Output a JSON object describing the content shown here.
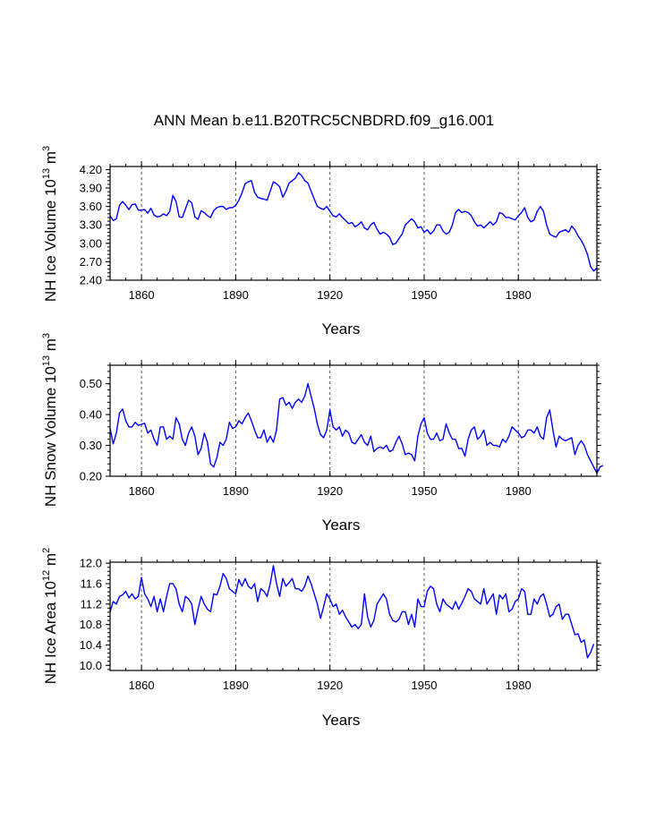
{
  "figure": {
    "title": "ANN Mean b.e11.B20TRC5CNBDRD.f09_g16.001"
  },
  "colors": {
    "line": "#0000ff",
    "axes": "#000000",
    "grid": "#555555"
  },
  "chart_data": [
    {
      "type": "line",
      "ylabel": {
        "main": "NH Ice Volume 10",
        "sup1": "13",
        "unit": " m",
        "sup2": "3"
      },
      "xlabel": "Years",
      "xlim": [
        1850,
        2005
      ],
      "ylim": [
        2.4,
        4.25
      ],
      "yticks": [
        "2.40",
        "2.70",
        "3.00",
        "3.30",
        "3.60",
        "3.90",
        "4.20"
      ],
      "xticks": [
        "1860",
        "1890",
        "1920",
        "1950",
        "1980"
      ],
      "grid_x": [
        1860,
        1890,
        1920,
        1950,
        1980
      ],
      "series": [
        {
          "name": "NH Ice Volume",
          "x_start": 1850,
          "values": [
            3.45,
            3.37,
            3.4,
            3.62,
            3.68,
            3.62,
            3.55,
            3.63,
            3.64,
            3.54,
            3.54,
            3.55,
            3.49,
            3.57,
            3.46,
            3.43,
            3.44,
            3.48,
            3.45,
            3.52,
            3.78,
            3.68,
            3.43,
            3.42,
            3.56,
            3.7,
            3.66,
            3.43,
            3.39,
            3.53,
            3.5,
            3.45,
            3.42,
            3.53,
            3.58,
            3.6,
            3.6,
            3.55,
            3.58,
            3.58,
            3.62,
            3.7,
            3.82,
            3.97,
            4.0,
            4.02,
            3.83,
            3.75,
            3.73,
            3.72,
            3.7,
            3.85,
            4.0,
            3.97,
            3.92,
            3.75,
            3.85,
            3.98,
            4.02,
            4.06,
            4.15,
            4.1,
            4.02,
            3.98,
            3.85,
            3.72,
            3.6,
            3.57,
            3.55,
            3.6,
            3.52,
            3.45,
            3.43,
            3.48,
            3.42,
            3.37,
            3.32,
            3.34,
            3.27,
            3.3,
            3.35,
            3.25,
            3.22,
            3.3,
            3.34,
            3.23,
            3.15,
            3.18,
            3.15,
            3.1,
            2.98,
            3.0,
            3.08,
            3.15,
            3.3,
            3.35,
            3.4,
            3.35,
            3.25,
            3.27,
            3.18,
            3.22,
            3.15,
            3.2,
            3.3,
            3.3,
            3.2,
            3.15,
            3.18,
            3.3,
            3.5,
            3.55,
            3.5,
            3.52,
            3.5,
            3.45,
            3.35,
            3.28,
            3.3,
            3.25,
            3.3,
            3.35,
            3.3,
            3.35,
            3.5,
            3.48,
            3.42,
            3.42,
            3.4,
            3.38,
            3.45,
            3.5,
            3.58,
            3.42,
            3.35,
            3.38,
            3.52,
            3.6,
            3.52,
            3.3,
            3.15,
            3.12,
            3.1,
            3.18,
            3.2,
            3.22,
            3.18,
            3.28,
            3.22,
            3.12,
            3.05,
            2.95,
            2.82,
            2.62,
            2.55,
            2.6
          ]
        }
      ]
    },
    {
      "type": "line",
      "ylabel": {
        "main": "NH Snow Volume 10",
        "sup1": "13",
        "unit": " m",
        "sup2": "3"
      },
      "xlabel": "Years",
      "xlim": [
        1850,
        2005
      ],
      "ylim": [
        0.2,
        0.56
      ],
      "yticks": [
        "0.20",
        "0.30",
        "0.40",
        "0.50"
      ],
      "xticks": [
        "1860",
        "1890",
        "1920",
        "1950",
        "1980"
      ],
      "grid_x": [
        1860,
        1890,
        1920,
        1950,
        1980
      ],
      "series": [
        {
          "name": "NH Snow Volume",
          "x_start": 1850,
          "values": [
            0.355,
            0.305,
            0.34,
            0.405,
            0.418,
            0.38,
            0.36,
            0.36,
            0.375,
            0.365,
            0.368,
            0.372,
            0.34,
            0.35,
            0.32,
            0.3,
            0.36,
            0.36,
            0.32,
            0.33,
            0.32,
            0.39,
            0.37,
            0.32,
            0.3,
            0.34,
            0.36,
            0.33,
            0.27,
            0.29,
            0.34,
            0.31,
            0.24,
            0.23,
            0.26,
            0.31,
            0.3,
            0.32,
            0.375,
            0.355,
            0.36,
            0.38,
            0.37,
            0.39,
            0.405,
            0.38,
            0.35,
            0.325,
            0.325,
            0.35,
            0.31,
            0.33,
            0.31,
            0.35,
            0.45,
            0.455,
            0.43,
            0.44,
            0.42,
            0.44,
            0.45,
            0.44,
            0.46,
            0.5,
            0.46,
            0.42,
            0.37,
            0.335,
            0.325,
            0.35,
            0.415,
            0.36,
            0.35,
            0.36,
            0.33,
            0.35,
            0.34,
            0.31,
            0.305,
            0.32,
            0.335,
            0.31,
            0.3,
            0.33,
            0.28,
            0.29,
            0.295,
            0.29,
            0.3,
            0.28,
            0.285,
            0.31,
            0.33,
            0.305,
            0.27,
            0.275,
            0.27,
            0.25,
            0.33,
            0.37,
            0.39,
            0.34,
            0.32,
            0.32,
            0.34,
            0.315,
            0.32,
            0.37,
            0.34,
            0.32,
            0.32,
            0.29,
            0.29,
            0.265,
            0.32,
            0.35,
            0.36,
            0.32,
            0.33,
            0.35,
            0.3,
            0.31,
            0.3,
            0.3,
            0.295,
            0.32,
            0.31,
            0.33,
            0.36,
            0.35,
            0.34,
            0.325,
            0.33,
            0.35,
            0.35,
            0.34,
            0.36,
            0.33,
            0.32,
            0.39,
            0.415,
            0.35,
            0.295,
            0.33,
            0.32,
            0.315,
            0.32,
            0.325,
            0.27,
            0.3,
            0.315,
            0.3,
            0.27,
            0.25,
            0.23,
            0.21,
            0.23,
            0.235
          ]
        }
      ]
    },
    {
      "type": "line",
      "ylabel": {
        "main": "NH Ice Area 10",
        "sup1": "12",
        "unit": " m",
        "sup2": "2"
      },
      "xlabel": "Years",
      "xlim": [
        1850,
        2005
      ],
      "ylim": [
        9.9,
        12.02
      ],
      "yticks": [
        "10.0",
        "10.4",
        "10.8",
        "11.2",
        "11.6",
        "12.0"
      ],
      "xticks": [
        "1860",
        "1890",
        "1920",
        "1950",
        "1980"
      ],
      "grid_x": [
        1860,
        1890,
        1920,
        1950,
        1980
      ],
      "series": [
        {
          "name": "NH Ice Area",
          "x_start": 1850,
          "values": [
            11.05,
            11.25,
            11.2,
            11.35,
            11.38,
            11.45,
            11.32,
            11.4,
            11.3,
            11.35,
            11.72,
            11.4,
            11.3,
            11.15,
            11.35,
            11.05,
            11.3,
            11.05,
            11.35,
            11.6,
            11.6,
            11.5,
            11.2,
            11.05,
            11.35,
            11.3,
            11.2,
            10.8,
            11.1,
            11.35,
            11.2,
            11.1,
            11.05,
            11.4,
            11.38,
            11.55,
            11.8,
            11.7,
            11.5,
            11.45,
            11.4,
            11.68,
            11.55,
            11.7,
            11.55,
            11.5,
            11.6,
            11.25,
            11.5,
            11.45,
            11.35,
            11.6,
            11.95,
            11.6,
            11.35,
            11.7,
            11.55,
            11.62,
            11.7,
            11.5,
            11.5,
            11.45,
            11.55,
            11.75,
            11.6,
            11.4,
            11.2,
            10.92,
            11.15,
            11.4,
            11.3,
            11.15,
            11.2,
            11.0,
            11.08,
            10.95,
            10.85,
            10.75,
            10.8,
            10.72,
            10.8,
            11.4,
            10.95,
            10.75,
            10.88,
            11.2,
            11.3,
            11.4,
            11.3,
            11.0,
            10.88,
            10.85,
            10.9,
            11.05,
            11.05,
            10.8,
            11.0,
            10.75,
            11.3,
            11.15,
            11.15,
            11.45,
            11.55,
            11.5,
            11.2,
            11.05,
            11.3,
            11.2,
            11.15,
            11.1,
            11.25,
            11.1,
            11.22,
            11.35,
            11.5,
            11.45,
            11.3,
            11.25,
            11.2,
            11.5,
            11.2,
            11.3,
            11.4,
            11.0,
            11.38,
            11.3,
            11.4,
            11.05,
            11.1,
            11.25,
            11.3,
            11.5,
            11.45,
            11.0,
            11.0,
            11.3,
            11.2,
            11.35,
            11.4,
            11.2,
            10.95,
            11.0,
            11.15,
            11.2,
            10.9,
            11.0,
            11.0,
            10.8,
            10.6,
            10.62,
            10.45,
            10.5,
            10.15,
            10.25,
            10.42
          ]
        }
      ]
    }
  ]
}
